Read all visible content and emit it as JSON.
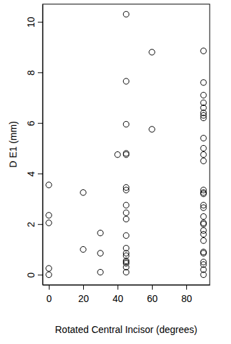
{
  "chart_data": {
    "type": "scatter",
    "x_label": "Rotated Central Incisor (degrees)",
    "y_label": "D E1 (mm)",
    "x": [
      0,
      0,
      0,
      0,
      0,
      20,
      20,
      30,
      30,
      30,
      40,
      45,
      45,
      45,
      45,
      45,
      45,
      45,
      45,
      45,
      45,
      45,
      45,
      45,
      45,
      45,
      45,
      45,
      45,
      45,
      60,
      60,
      90,
      90,
      90,
      90,
      90,
      90,
      90,
      90,
      90,
      90,
      90,
      90,
      90,
      90,
      90,
      90,
      90,
      90,
      90,
      90,
      90,
      90,
      90,
      90,
      90,
      90,
      90,
      90,
      90
    ],
    "y": [
      3.55,
      2.35,
      2.05,
      0.25,
      0.0,
      3.25,
      1.0,
      1.65,
      0.85,
      0.1,
      4.75,
      10.3,
      7.65,
      5.95,
      4.8,
      4.75,
      3.45,
      3.35,
      2.75,
      2.45,
      2.2,
      1.55,
      1.05,
      0.85,
      0.75,
      0.55,
      0.5,
      0.45,
      0.3,
      0.1,
      8.8,
      5.75,
      8.85,
      7.6,
      7.1,
      6.8,
      6.6,
      6.4,
      6.3,
      6.2,
      5.4,
      5.0,
      4.75,
      4.5,
      3.35,
      3.25,
      3.2,
      2.75,
      2.65,
      2.3,
      2.05,
      2.0,
      1.75,
      1.6,
      1.35,
      0.9,
      0.85,
      0.5,
      0.4,
      0.2,
      0.0
    ],
    "xlim": [
      -3.6,
      93.6
    ],
    "ylim": [
      -0.4,
      10.7
    ],
    "xticks": [
      0,
      20,
      40,
      60,
      80
    ],
    "yticks": [
      0,
      2,
      4,
      6,
      8,
      10
    ],
    "color": "#000000",
    "marker": "open-circle",
    "grid": false
  }
}
